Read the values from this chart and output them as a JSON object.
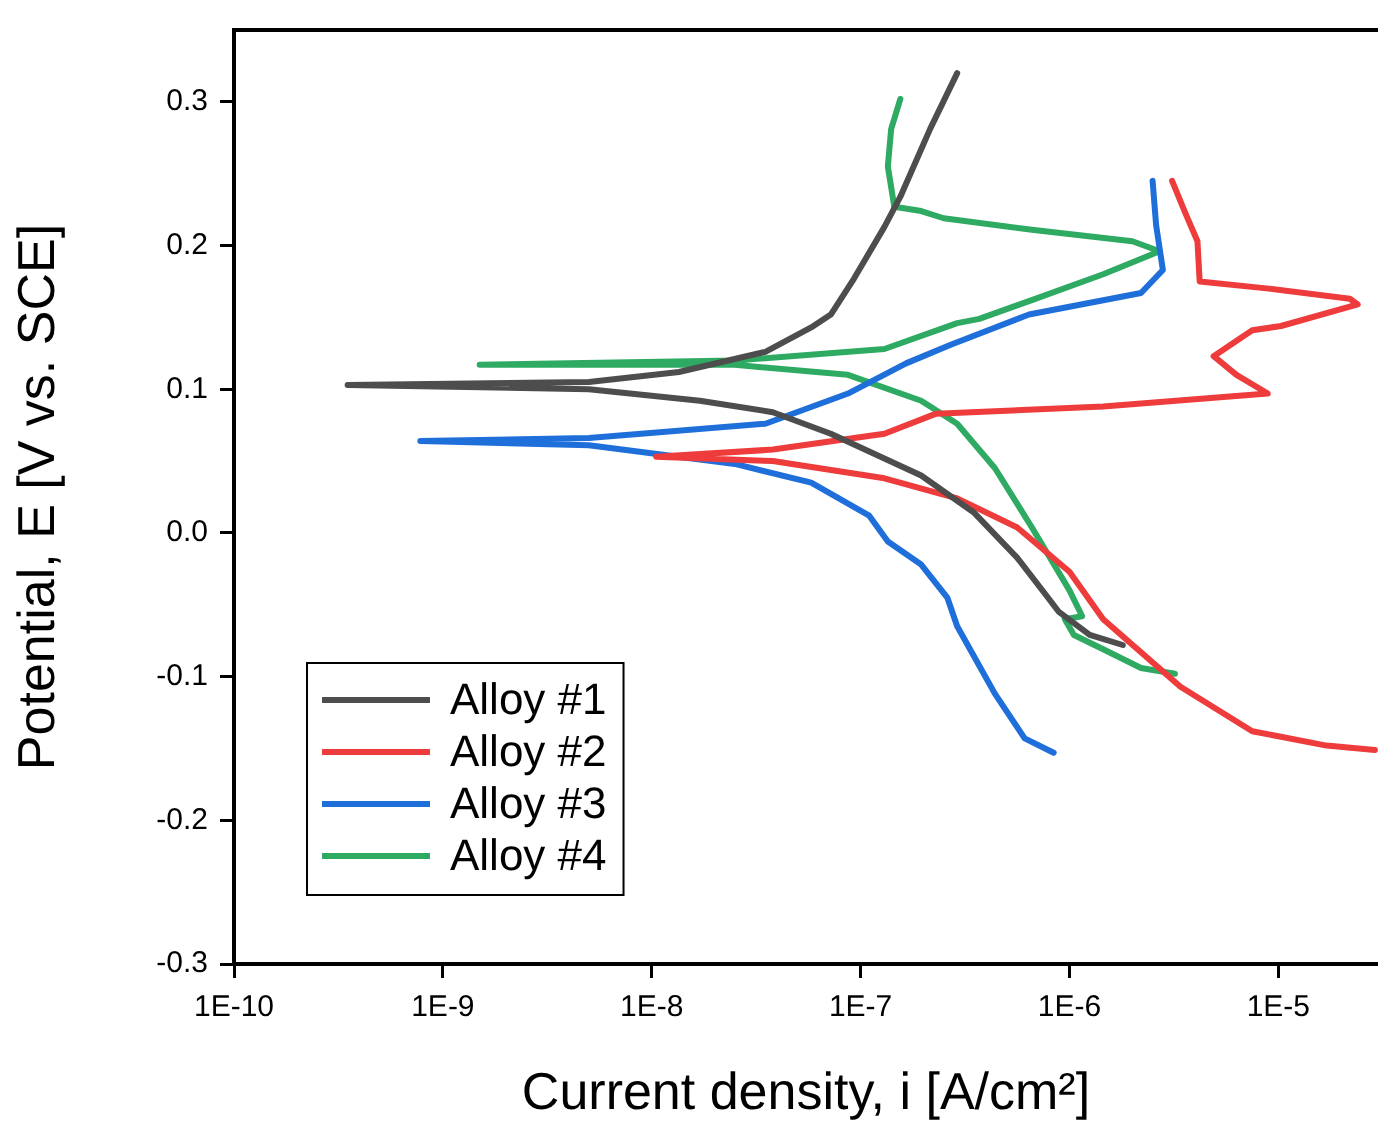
{
  "chart_data": {
    "type": "line",
    "xlabel": "Current density, i [A/cm²]",
    "ylabel": "Potential, E [V vs. SCE]",
    "log": "x",
    "xlim": [
      1e-10,
      3e-05
    ],
    "ylim": [
      -0.3,
      0.35
    ],
    "xticks": [
      {
        "value": 1e-10,
        "label": "1E-10"
      },
      {
        "value": 1e-09,
        "label": "1E-9"
      },
      {
        "value": 1e-08,
        "label": "1E-8"
      },
      {
        "value": 1e-07,
        "label": "1E-7"
      },
      {
        "value": 1e-06,
        "label": "1E-6"
      },
      {
        "value": 1e-05,
        "label": "1E-5"
      }
    ],
    "yticks": [
      -0.3,
      -0.2,
      -0.1,
      {
        "value": 0,
        "label": "0.0"
      },
      0.1,
      0.2,
      0.3
    ],
    "legend": "bottom left",
    "marker": "none",
    "line_style": "solid",
    "grid": false,
    "series": [
      {
        "name": "Alloy #1",
        "color": "#4d4d4d",
        "x": [
          1.8e-06,
          1.25e-06,
          8.9e-07,
          7.7e-07,
          5.6e-07,
          3.5e-07,
          1.95e-07,
          7.2e-08,
          3.8e-08,
          1.7e-08,
          5e-09,
          3.5e-10,
          5e-09,
          1.35e-08,
          3.5e-08,
          5.8e-08,
          7.2e-08,
          9.3e-08,
          1.3e-07,
          1.55e-07,
          2.15e-07,
          2.9e-07
        ],
        "values": [
          -0.078,
          -0.071,
          -0.055,
          -0.043,
          -0.017,
          0.014,
          0.04,
          0.069,
          0.084,
          0.092,
          0.1,
          0.103,
          0.105,
          0.112,
          0.126,
          0.143,
          0.152,
          0.177,
          0.213,
          0.234,
          0.281,
          0.32
        ]
      },
      {
        "name": "Alloy #2",
        "color": "#ee3b3b",
        "x": [
          2.9e-05,
          1.7e-05,
          7.5e-06,
          3.4e-06,
          1.45e-06,
          1e-06,
          5.6e-07,
          2.9e-07,
          1.3e-07,
          3.8e-08,
          1.05e-08,
          3.8e-08,
          1.3e-07,
          2.3e-07,
          1.45e-06,
          8.9e-06,
          6.3e-06,
          4.9e-06,
          7.5e-06,
          1.03e-05,
          2.4e-05,
          2.2e-05,
          9e-06,
          4.2e-06,
          4.1e-06,
          3.6e-06,
          3.1e-06
        ],
        "values": [
          -0.151,
          -0.148,
          -0.138,
          -0.107,
          -0.06,
          -0.027,
          0.004,
          0.024,
          0.038,
          0.05,
          0.053,
          0.058,
          0.069,
          0.083,
          0.088,
          0.097,
          0.11,
          0.123,
          0.141,
          0.144,
          0.159,
          0.163,
          0.17,
          0.175,
          0.203,
          0.222,
          0.245
        ]
      },
      {
        "name": "Alloy #3",
        "color": "#1f6fdb",
        "x": [
          8.4e-07,
          6.1e-07,
          4.4e-07,
          2.9e-07,
          2.6e-07,
          1.95e-07,
          1.35e-07,
          1.1e-07,
          5.8e-08,
          2.5e-08,
          5e-09,
          7.8e-10,
          5e-09,
          3.5e-08,
          8.7e-08,
          1.65e-07,
          2.7e-07,
          6.4e-07,
          2.2e-06,
          2.8e-06,
          2.6e-06,
          2.5e-06
        ],
        "values": [
          -0.153,
          -0.143,
          -0.112,
          -0.065,
          -0.045,
          -0.022,
          -0.006,
          0.012,
          0.035,
          0.048,
          0.061,
          0.064,
          0.066,
          0.076,
          0.097,
          0.118,
          0.131,
          0.152,
          0.167,
          0.183,
          0.214,
          0.245
        ]
      },
      {
        "name": "Alloy #4",
        "color": "#2eaa62",
        "x": [
          3.2e-06,
          2.2e-06,
          1.45e-06,
          1.05e-06,
          9.5e-07,
          1.15e-06,
          1e-06,
          6.6e-07,
          4.4e-07,
          2.9e-07,
          1.95e-07,
          8.7e-08,
          2.5e-08,
          1.5e-09,
          2.5e-08,
          1.3e-07,
          2.9e-07,
          3.7e-07,
          6.6e-07,
          1.45e-06,
          2.7e-06,
          2e-06,
          6.6e-07,
          2.5e-07,
          1.95e-07,
          1.45e-07,
          1.35e-07,
          1.4e-07,
          1.55e-07
        ],
        "values": [
          -0.098,
          -0.094,
          -0.081,
          -0.071,
          -0.06,
          -0.058,
          -0.04,
          0.004,
          0.045,
          0.076,
          0.092,
          0.11,
          0.117,
          0.117,
          0.12,
          0.128,
          0.146,
          0.149,
          0.162,
          0.18,
          0.196,
          0.203,
          0.211,
          0.219,
          0.224,
          0.227,
          0.255,
          0.281,
          0.302
        ]
      }
    ]
  }
}
